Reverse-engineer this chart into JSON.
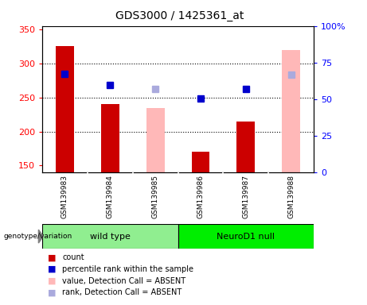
{
  "title": "GDS3000 / 1425361_at",
  "samples": [
    "GSM139983",
    "GSM139984",
    "GSM139985",
    "GSM139986",
    "GSM139987",
    "GSM139988"
  ],
  "absent": [
    false,
    false,
    true,
    false,
    false,
    true
  ],
  "count_values": [
    325,
    240,
    235,
    170,
    215,
    320
  ],
  "rank_values": [
    285,
    268,
    263,
    248,
    263,
    283
  ],
  "count_color_present": "#cc0000",
  "count_color_absent": "#ffb8b8",
  "rank_color_present": "#0000cc",
  "rank_color_absent": "#aaaadd",
  "ylim_left": [
    140,
    355
  ],
  "ylim_right": [
    0,
    100
  ],
  "yticks_left": [
    150,
    200,
    250,
    300,
    350
  ],
  "yticks_right": [
    0,
    25,
    50,
    75,
    100
  ],
  "yticklabels_right": [
    "0",
    "25",
    "50",
    "75",
    "100%"
  ],
  "grid_vals": [
    200,
    250,
    300
  ],
  "bar_width": 0.4,
  "marker_size": 6,
  "label_box_color": "#d3d3d3",
  "wild_type_color": "#90ee90",
  "neuro_color": "#00ee00",
  "legend_items": [
    {
      "color": "#cc0000",
      "label": "count"
    },
    {
      "color": "#0000cc",
      "label": "percentile rank within the sample"
    },
    {
      "color": "#ffb8b8",
      "label": "value, Detection Call = ABSENT"
    },
    {
      "color": "#aaaadd",
      "label": "rank, Detection Call = ABSENT"
    }
  ]
}
